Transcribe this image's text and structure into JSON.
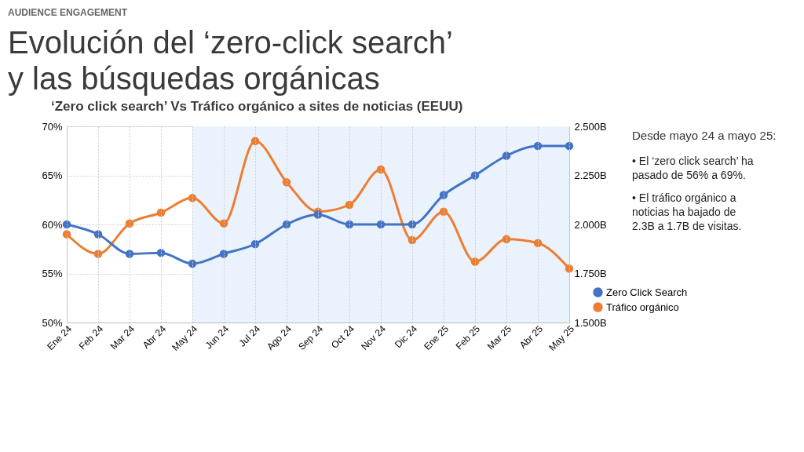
{
  "chart_data": {
    "type": "line",
    "title": "Evolución del ‘zero-click search’\ny las búsquedas orgánicas",
    "subtitle": "‘Zero click search’ Vs Tráfico orgánico a sites de noticias (EEUU)",
    "categories": [
      "Ene 24",
      "Feb 24",
      "Mar 24",
      "Abr 24",
      "May 24",
      "Jun 24",
      "Jul 24",
      "Ago 24",
      "Sep 24",
      "Oct 24",
      "Nov 24",
      "Dic 24",
      "Ene 25",
      "Feb 25",
      "Mar 25",
      "Abr 25",
      "May 25"
    ],
    "series": [
      {
        "name": "Zero Click Search",
        "color": "#4472c4",
        "values": [
          60,
          59,
          57,
          57.1,
          56,
          57,
          58,
          60,
          61,
          60,
          60,
          60,
          63,
          65,
          67,
          68,
          68
        ]
      },
      {
        "name": "Tráfico orgánico",
        "color": "#ed7d31",
        "axis": "y2",
        "values": [
          1.95,
          1.85,
          2.005,
          2.06,
          2.135,
          2.005,
          2.425,
          2.215,
          2.065,
          2.1,
          2.28,
          1.92,
          2.065,
          1.81,
          1.925,
          1.905,
          1.775
        ]
      }
    ],
    "ylim": [
      50,
      70
    ],
    "yticks": [
      {
        "value": 50,
        "label": "50%"
      },
      {
        "value": 55,
        "label": "55%"
      },
      {
        "value": 60,
        "label": "60%"
      },
      {
        "value": 65,
        "label": "65%"
      },
      {
        "value": 70,
        "label": "70%"
      }
    ],
    "y2lim": [
      1.5,
      2.5
    ],
    "y2ticks": [
      {
        "value": 1.5,
        "label": "1.500B"
      },
      {
        "value": 1.75,
        "label": "1.750B"
      },
      {
        "value": 2.0,
        "label": "2.000B"
      },
      {
        "value": 2.25,
        "label": "2.250B"
      },
      {
        "value": 2.5,
        "label": "2.500B"
      }
    ],
    "bands": [
      {
        "axis": "x",
        "from": "May 24",
        "to": "May 25",
        "color": "#eaf3fd"
      }
    ],
    "annotations": [
      "AUDIENCE ENGAGEMENT",
      "Desde mayo 24 a mayo 25:",
      "• El ‘zero click search’ ha\n   pasado de 56% a 69%.",
      "• El tráfico orgánico a\n   noticias ha bajado de\n   2.3B a 1.7B de visitas."
    ],
    "grid": true,
    "legend": "right",
    "marker": "circle",
    "line_style": "solid"
  }
}
